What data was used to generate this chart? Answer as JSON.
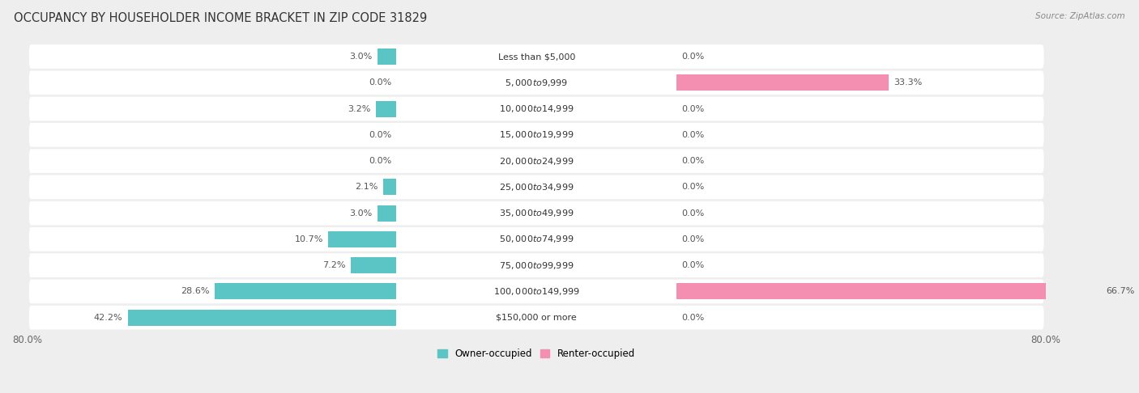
{
  "title": "OCCUPANCY BY HOUSEHOLDER INCOME BRACKET IN ZIP CODE 31829",
  "source": "Source: ZipAtlas.com",
  "categories": [
    "Less than $5,000",
    "$5,000 to $9,999",
    "$10,000 to $14,999",
    "$15,000 to $19,999",
    "$20,000 to $24,999",
    "$25,000 to $34,999",
    "$35,000 to $49,999",
    "$50,000 to $74,999",
    "$75,000 to $99,999",
    "$100,000 to $149,999",
    "$150,000 or more"
  ],
  "owner_pct": [
    3.0,
    0.0,
    3.2,
    0.0,
    0.0,
    2.1,
    3.0,
    10.7,
    7.2,
    28.6,
    42.2
  ],
  "renter_pct": [
    0.0,
    33.3,
    0.0,
    0.0,
    0.0,
    0.0,
    0.0,
    0.0,
    0.0,
    66.7,
    0.0
  ],
  "owner_color": "#5bc4c4",
  "renter_color": "#f48fb1",
  "bg_color": "#eeeeee",
  "bar_bg_color": "#ffffff",
  "axis_max": 80.0,
  "title_color": "#333333",
  "label_fontsize": 8.0,
  "legend_owner": "Owner-occupied",
  "legend_renter": "Renter-occupied"
}
